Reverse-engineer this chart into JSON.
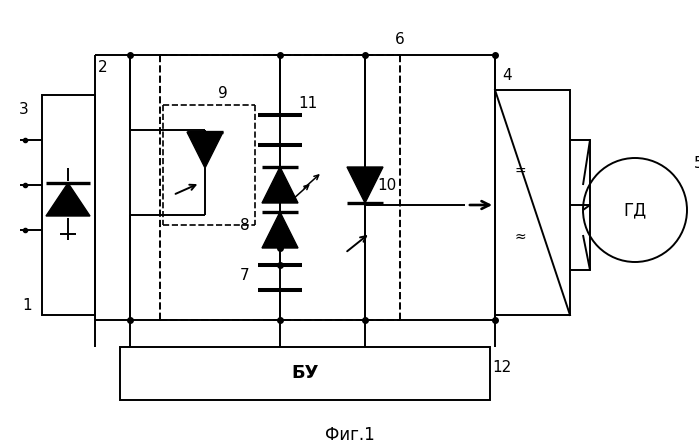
{
  "bg_color": "#ffffff",
  "lc": "#000000",
  "title": "Фиг.1",
  "bu_label": "БУ",
  "gd_label": "ГД",
  "lw": 1.4
}
